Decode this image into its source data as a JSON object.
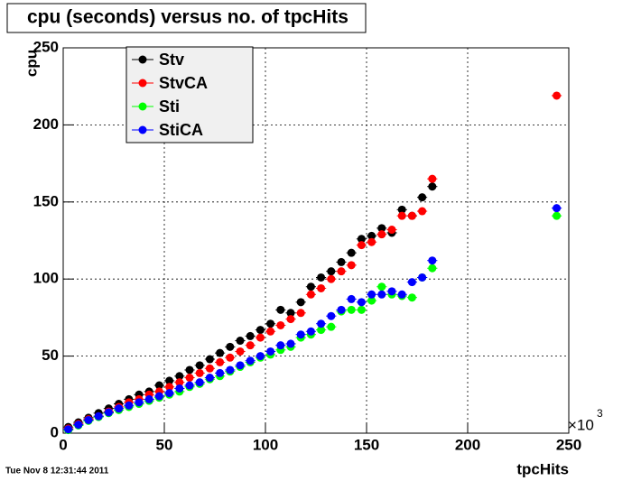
{
  "chart_data": {
    "type": "scatter",
    "title": "cpu (seconds) versus no. of tpcHits",
    "x_label": "tpcHits",
    "y_label": "cpu",
    "x_multiplier_base": "×10",
    "x_multiplier_exponent": "3",
    "timestamp": "Tue Nov  8 12:31:44 2011",
    "x": [
      2.5,
      7.5,
      12.5,
      17.5,
      22.5,
      27.5,
      32.5,
      37.5,
      42.5,
      47.5,
      52.5,
      57.5,
      62.5,
      67.5,
      72.5,
      77.5,
      82.5,
      87.5,
      92.5,
      97.5,
      102.5,
      107.5,
      112.5,
      117.5,
      122.5,
      127.5,
      132.5,
      137.5,
      142.5,
      147.5,
      152.5,
      157.5,
      162.5,
      167.5,
      172.5,
      177.5,
      182.5,
      244
    ],
    "series": [
      {
        "name": "Stv",
        "color": "#000000",
        "values": [
          4,
          7,
          10,
          13,
          16,
          19,
          22,
          25,
          27,
          31,
          34,
          37,
          41,
          44,
          48,
          52,
          56,
          60,
          63,
          67,
          71,
          80,
          78,
          85,
          95,
          101,
          105,
          111,
          117,
          126,
          128,
          133,
          130,
          145,
          141,
          153,
          160,
          null
        ]
      },
      {
        "name": "StvCA",
        "color": "#ff0000",
        "values": [
          3,
          6,
          9,
          11,
          14,
          17,
          20,
          22,
          25,
          27,
          30,
          33,
          36,
          39,
          42,
          46,
          49,
          53,
          57,
          62,
          66,
          70,
          74,
          78,
          90,
          94,
          100,
          105,
          109,
          122,
          124,
          129,
          132,
          141,
          141,
          144,
          165,
          219
        ]
      },
      {
        "name": "Sti",
        "color": "#00ff00",
        "values": [
          2,
          5,
          8,
          10.5,
          13,
          15,
          17,
          19,
          21,
          23,
          25,
          27,
          30,
          32,
          35,
          37,
          40,
          43,
          46,
          49,
          51,
          54,
          56,
          62,
          64,
          67,
          69,
          79,
          80,
          80,
          86,
          95,
          90,
          89,
          88,
          101,
          107,
          141
        ]
      },
      {
        "name": "StiCA",
        "color": "#0000ff",
        "values": [
          2.5,
          5.5,
          8.5,
          11,
          13.5,
          16,
          18,
          20,
          22,
          24,
          26,
          29,
          31,
          33,
          36,
          39,
          41,
          44,
          47,
          50,
          53,
          57,
          58,
          64,
          66,
          71,
          76,
          80,
          87,
          85,
          90,
          90,
          92,
          90,
          98,
          101,
          112,
          146
        ]
      }
    ],
    "xlim": [
      0,
      250
    ],
    "xticks": [
      0,
      50,
      100,
      150,
      200,
      250
    ],
    "ylim": [
      0,
      250
    ],
    "yticks": [
      0,
      50,
      100,
      150,
      200,
      250
    ],
    "grid": true,
    "legend": "top-left"
  }
}
